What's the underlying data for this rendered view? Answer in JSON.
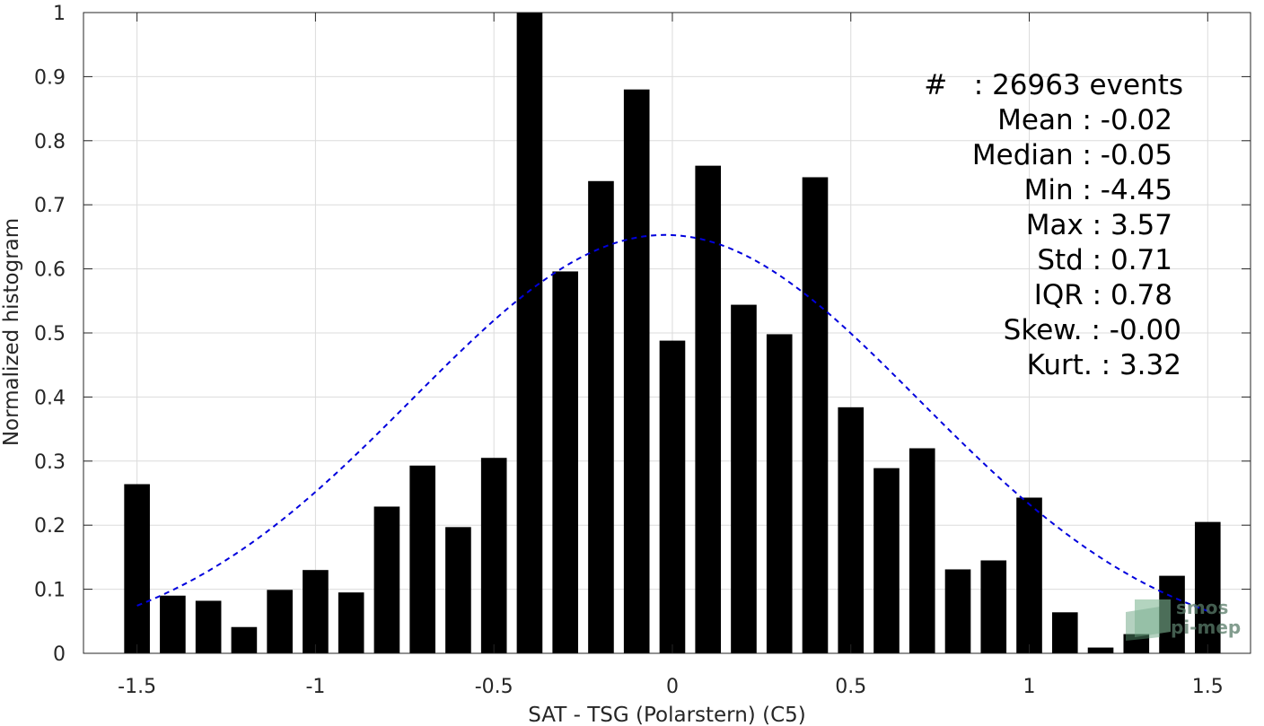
{
  "chart_data": {
    "type": "bar",
    "xlabel": "SAT - TSG (Polarstern) (C5)",
    "ylabel": "Normalized histogram",
    "xlim": [
      -1.65,
      1.62
    ],
    "ylim": [
      0,
      1
    ],
    "grid": true,
    "x_ticks": [
      -1.5,
      -1,
      -0.5,
      0,
      0.5,
      1,
      1.5
    ],
    "x_tick_labels": [
      "-1.5",
      "-1",
      "-0.5",
      "0",
      "0.5",
      "1",
      "1.5"
    ],
    "y_ticks": [
      0,
      0.1,
      0.2,
      0.3,
      0.4,
      0.5,
      0.6,
      0.7,
      0.8,
      0.9,
      1
    ],
    "y_tick_labels": [
      "0",
      "0.1",
      "0.2",
      "0.3",
      "0.4",
      "0.5",
      "0.6",
      "0.7",
      "0.8",
      "0.9",
      "1"
    ],
    "series": [
      {
        "type": "bar",
        "color": "#000000",
        "x": [
          -1.5,
          -1.4,
          -1.3,
          -1.2,
          -1.1,
          -1.0,
          -0.9,
          -0.8,
          -0.7,
          -0.6,
          -0.5,
          -0.4,
          -0.3,
          -0.2,
          -0.1,
          0.0,
          0.1,
          0.2,
          0.3,
          0.4,
          0.5,
          0.6,
          0.7,
          0.8,
          0.9,
          1.0,
          1.1,
          1.2,
          1.3,
          1.4,
          1.5
        ],
        "values": [
          0.264,
          0.09,
          0.082,
          0.041,
          0.099,
          0.13,
          0.095,
          0.229,
          0.293,
          0.197,
          0.305,
          1.0,
          0.596,
          0.737,
          0.88,
          0.488,
          0.761,
          0.544,
          0.498,
          0.743,
          0.384,
          0.289,
          0.32,
          0.131,
          0.145,
          0.243,
          0.064,
          0.009,
          0.03,
          0.121,
          0.205
        ]
      },
      {
        "type": "line",
        "style": "dashed",
        "color": "#0000dd",
        "fit": "normal",
        "x_range": [
          -1.5,
          1.5
        ],
        "mean": -0.02,
        "std": 0.71,
        "peak": 0.653
      }
    ]
  },
  "stats": [
    "#   : 26963 events",
    "Mean : -0.02",
    "Median : -0.05",
    "Min : -4.45",
    "Max : 3.57",
    "Std : 0.71",
    "IQR : 0.78",
    "Skew. : -0.00",
    "Kurt. : 3.32"
  ],
  "logo": {
    "line1": "smos",
    "line2": "pi-mep"
  }
}
